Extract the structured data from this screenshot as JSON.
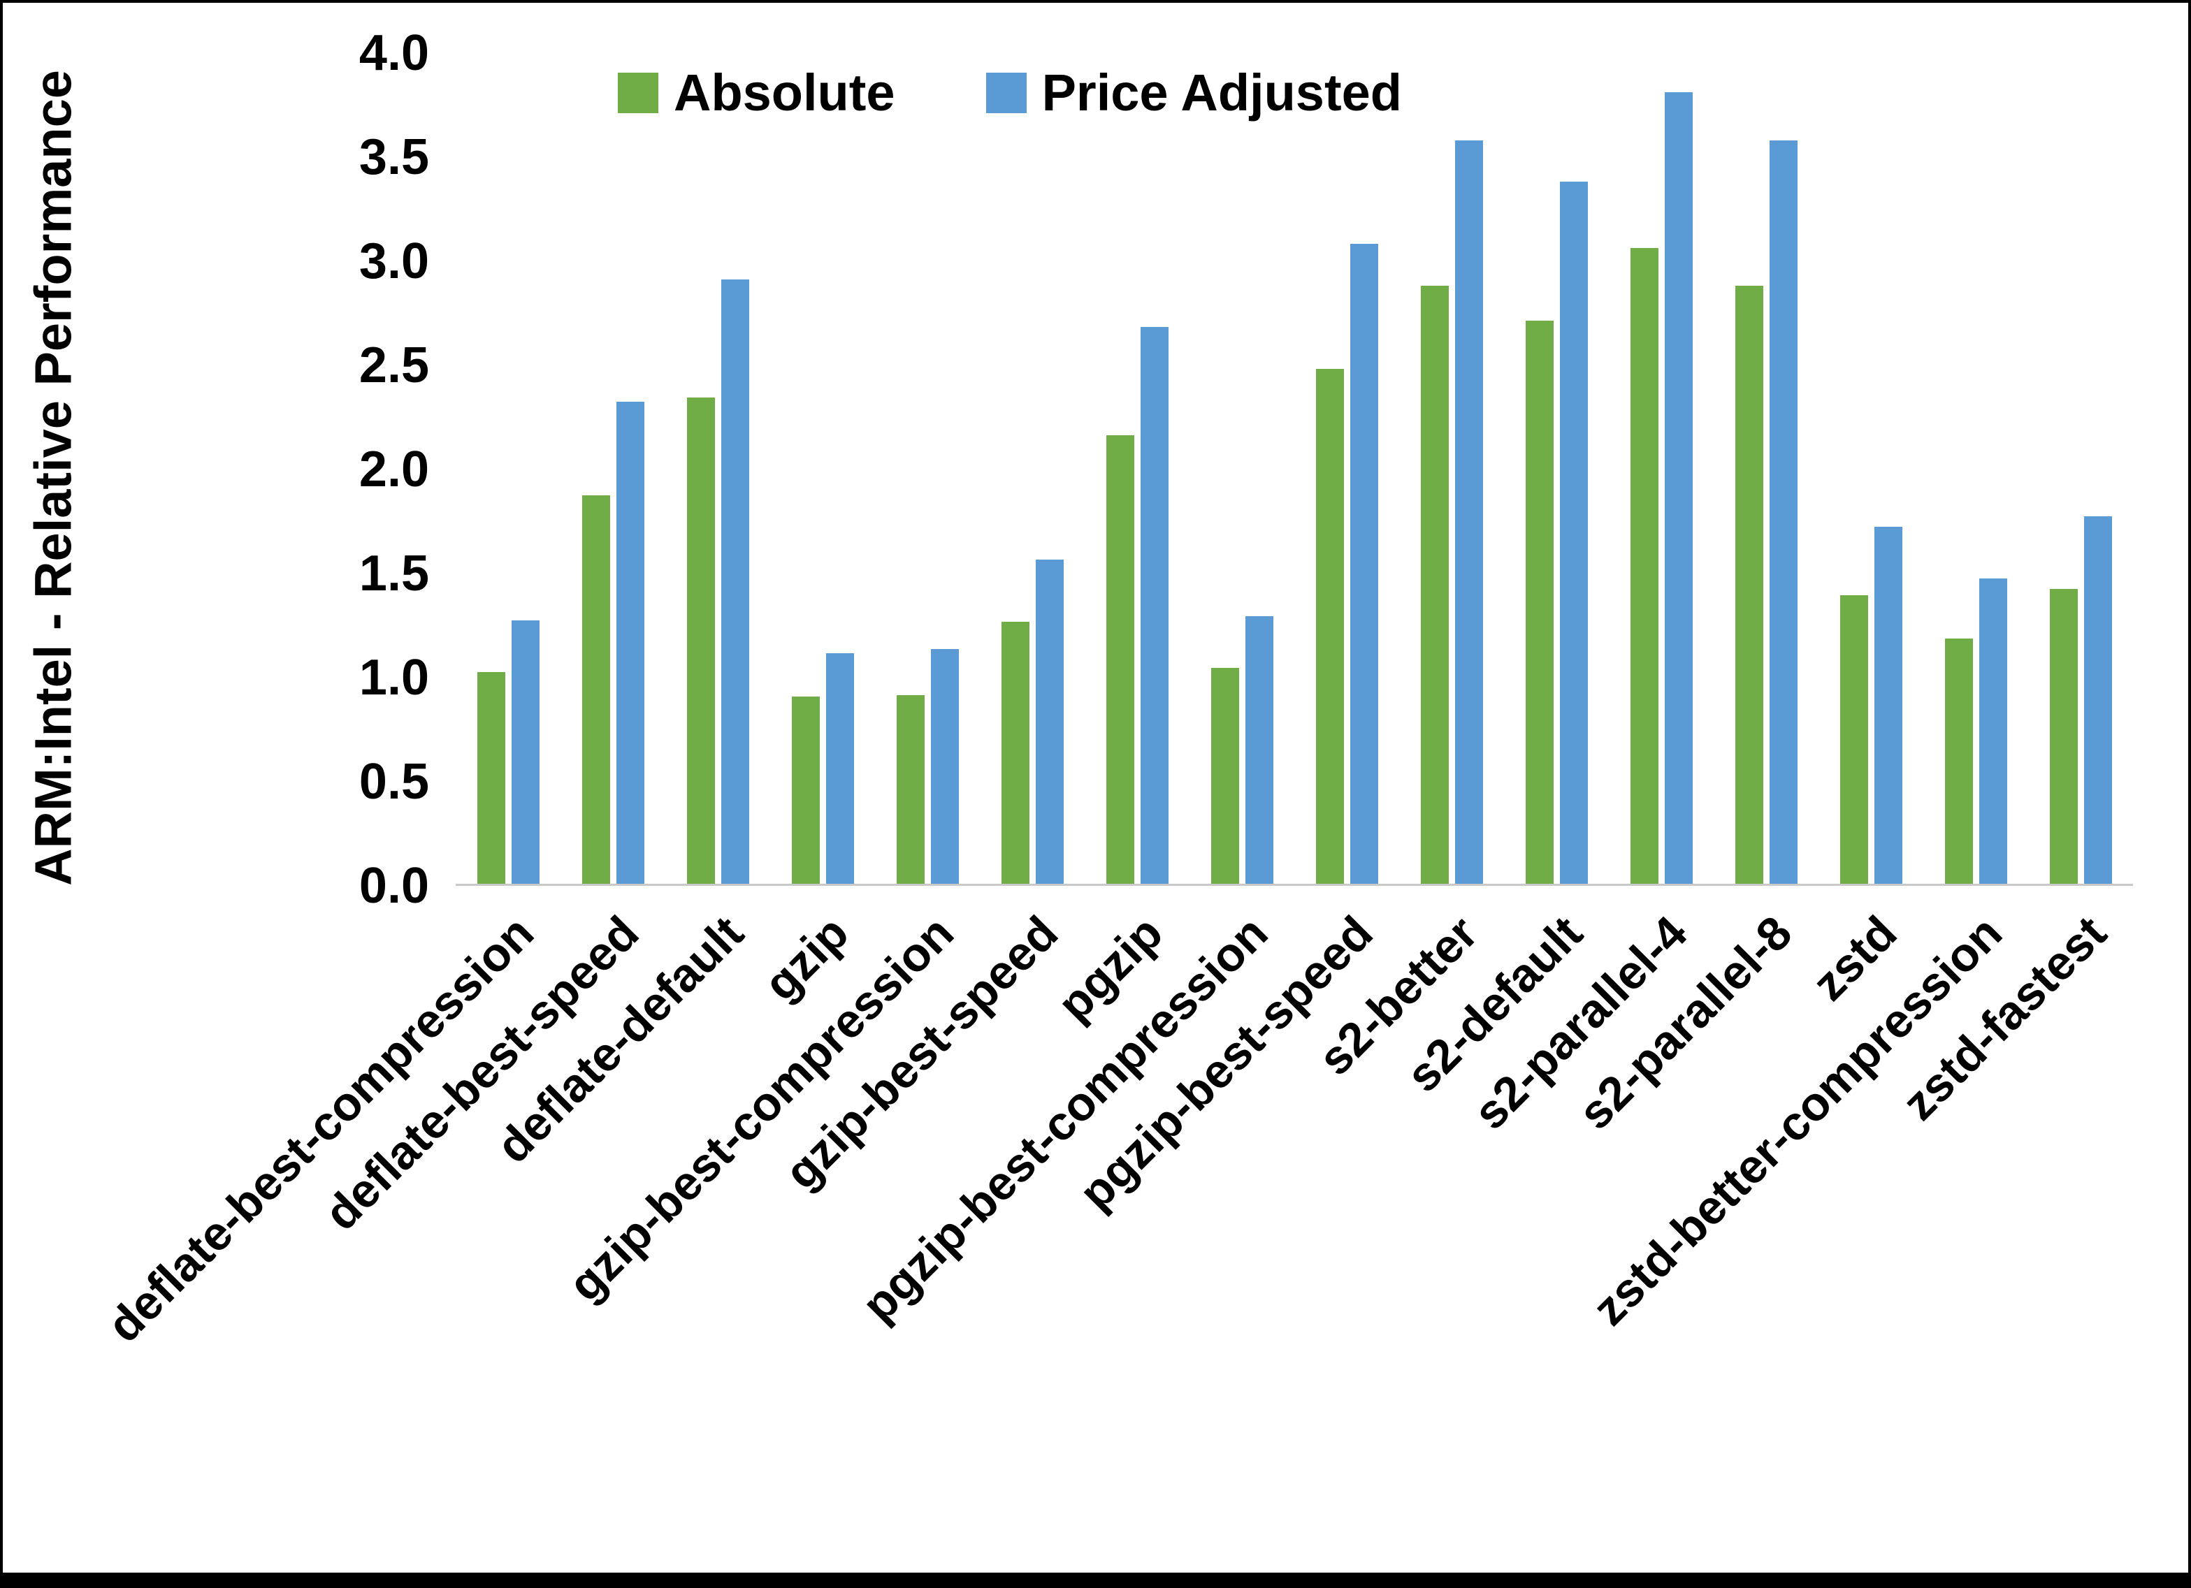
{
  "chart_data": {
    "type": "bar",
    "title": "",
    "xlabel": "",
    "ylabel": "ARM:Intel - Relative Performance",
    "ylim": [
      0,
      4.0
    ],
    "ytick_step": 0.5,
    "grid": false,
    "legend_position": "top",
    "categories": [
      "deflate-best-compression",
      "deflate-best-speed",
      "deflate-default",
      "gzip",
      "gzip-best-compression",
      "gzip-best-speed",
      "pgzip",
      "pgzip-best-compression",
      "pgzip-best-speed",
      "s2-better",
      "s2-default",
      "s2-parallel-4",
      "s2-parallel-8",
      "zstd",
      "zstd-better-compression",
      "zstd-fastest"
    ],
    "series": [
      {
        "name": "Absolute",
        "color": "#70AD47",
        "values": [
          1.02,
          1.87,
          2.34,
          0.9,
          0.91,
          1.26,
          2.16,
          1.04,
          2.48,
          2.88,
          2.71,
          3.06,
          2.88,
          1.39,
          1.18,
          1.42
        ]
      },
      {
        "name": "Price Adjusted",
        "color": "#5B9BD5",
        "values": [
          1.27,
          2.32,
          2.91,
          1.11,
          1.13,
          1.56,
          2.68,
          1.29,
          3.08,
          3.58,
          3.38,
          3.81,
          3.58,
          1.72,
          1.47,
          1.77
        ]
      }
    ]
  }
}
